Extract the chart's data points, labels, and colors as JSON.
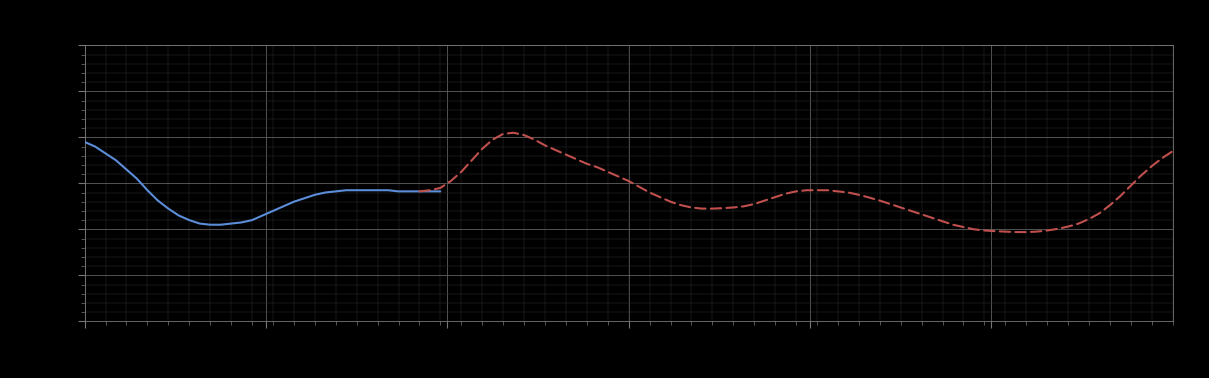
{
  "background_color": "#000000",
  "grid_major_color": "#606060",
  "grid_minor_color": "#303030",
  "blue_line_color": "#5b8dd9",
  "red_line_color": "#c0504d",
  "figure_size": [
    12.09,
    3.78
  ],
  "dpi": 100,
  "xlim": [
    0,
    52
  ],
  "ylim": [
    0,
    12
  ],
  "x_major_step": 8.667,
  "y_major_step": 2.0,
  "x_minor_step": 1.0,
  "y_minor_step": 0.4,
  "blue_x": [
    0,
    0.5,
    1,
    1.5,
    2,
    2.5,
    3,
    3.5,
    4,
    4.5,
    5,
    5.5,
    6,
    6.5,
    7,
    7.5,
    8,
    8.5,
    9,
    9.5,
    10,
    10.5,
    11,
    11.5,
    12,
    12.5,
    13,
    13.5,
    14,
    14.5,
    15,
    15.5,
    16,
    16.5,
    17
  ],
  "blue_y": [
    7.8,
    7.6,
    7.3,
    7.0,
    6.6,
    6.2,
    5.7,
    5.25,
    4.9,
    4.6,
    4.4,
    4.25,
    4.2,
    4.2,
    4.25,
    4.3,
    4.4,
    4.6,
    4.8,
    5.0,
    5.2,
    5.35,
    5.5,
    5.6,
    5.65,
    5.7,
    5.7,
    5.7,
    5.7,
    5.7,
    5.65,
    5.65,
    5.65,
    5.65,
    5.65
  ],
  "red_x": [
    16,
    16.5,
    17,
    17.5,
    18,
    18.5,
    19,
    19.5,
    20,
    20.5,
    21,
    21.5,
    22,
    22.5,
    23,
    23.5,
    24,
    24.5,
    25,
    25.5,
    26,
    26.5,
    27,
    27.5,
    28,
    28.5,
    29,
    29.5,
    30,
    30.5,
    31,
    31.5,
    32,
    32.5,
    33,
    33.5,
    34,
    34.5,
    35,
    35.5,
    36,
    36.5,
    37,
    37.5,
    38,
    38.5,
    39,
    39.5,
    40,
    40.5,
    41,
    41.5,
    42,
    42.5,
    43,
    43.5,
    44,
    44.5,
    45,
    45.5,
    46,
    46.5,
    47,
    47.5,
    48,
    48.5,
    49,
    49.5,
    50,
    50.5,
    51,
    51.5,
    52
  ],
  "red_y": [
    5.65,
    5.7,
    5.8,
    6.1,
    6.5,
    7.0,
    7.5,
    7.9,
    8.15,
    8.2,
    8.1,
    7.9,
    7.65,
    7.45,
    7.25,
    7.05,
    6.85,
    6.7,
    6.5,
    6.3,
    6.1,
    5.85,
    5.6,
    5.4,
    5.2,
    5.05,
    4.95,
    4.9,
    4.9,
    4.92,
    4.95,
    5.0,
    5.1,
    5.25,
    5.4,
    5.55,
    5.65,
    5.7,
    5.7,
    5.7,
    5.65,
    5.6,
    5.5,
    5.38,
    5.25,
    5.1,
    4.95,
    4.8,
    4.65,
    4.5,
    4.35,
    4.2,
    4.1,
    4.0,
    3.95,
    3.92,
    3.9,
    3.88,
    3.88,
    3.9,
    3.95,
    4.02,
    4.12,
    4.25,
    4.45,
    4.7,
    5.05,
    5.45,
    5.9,
    6.35,
    6.75,
    7.1,
    7.4
  ]
}
